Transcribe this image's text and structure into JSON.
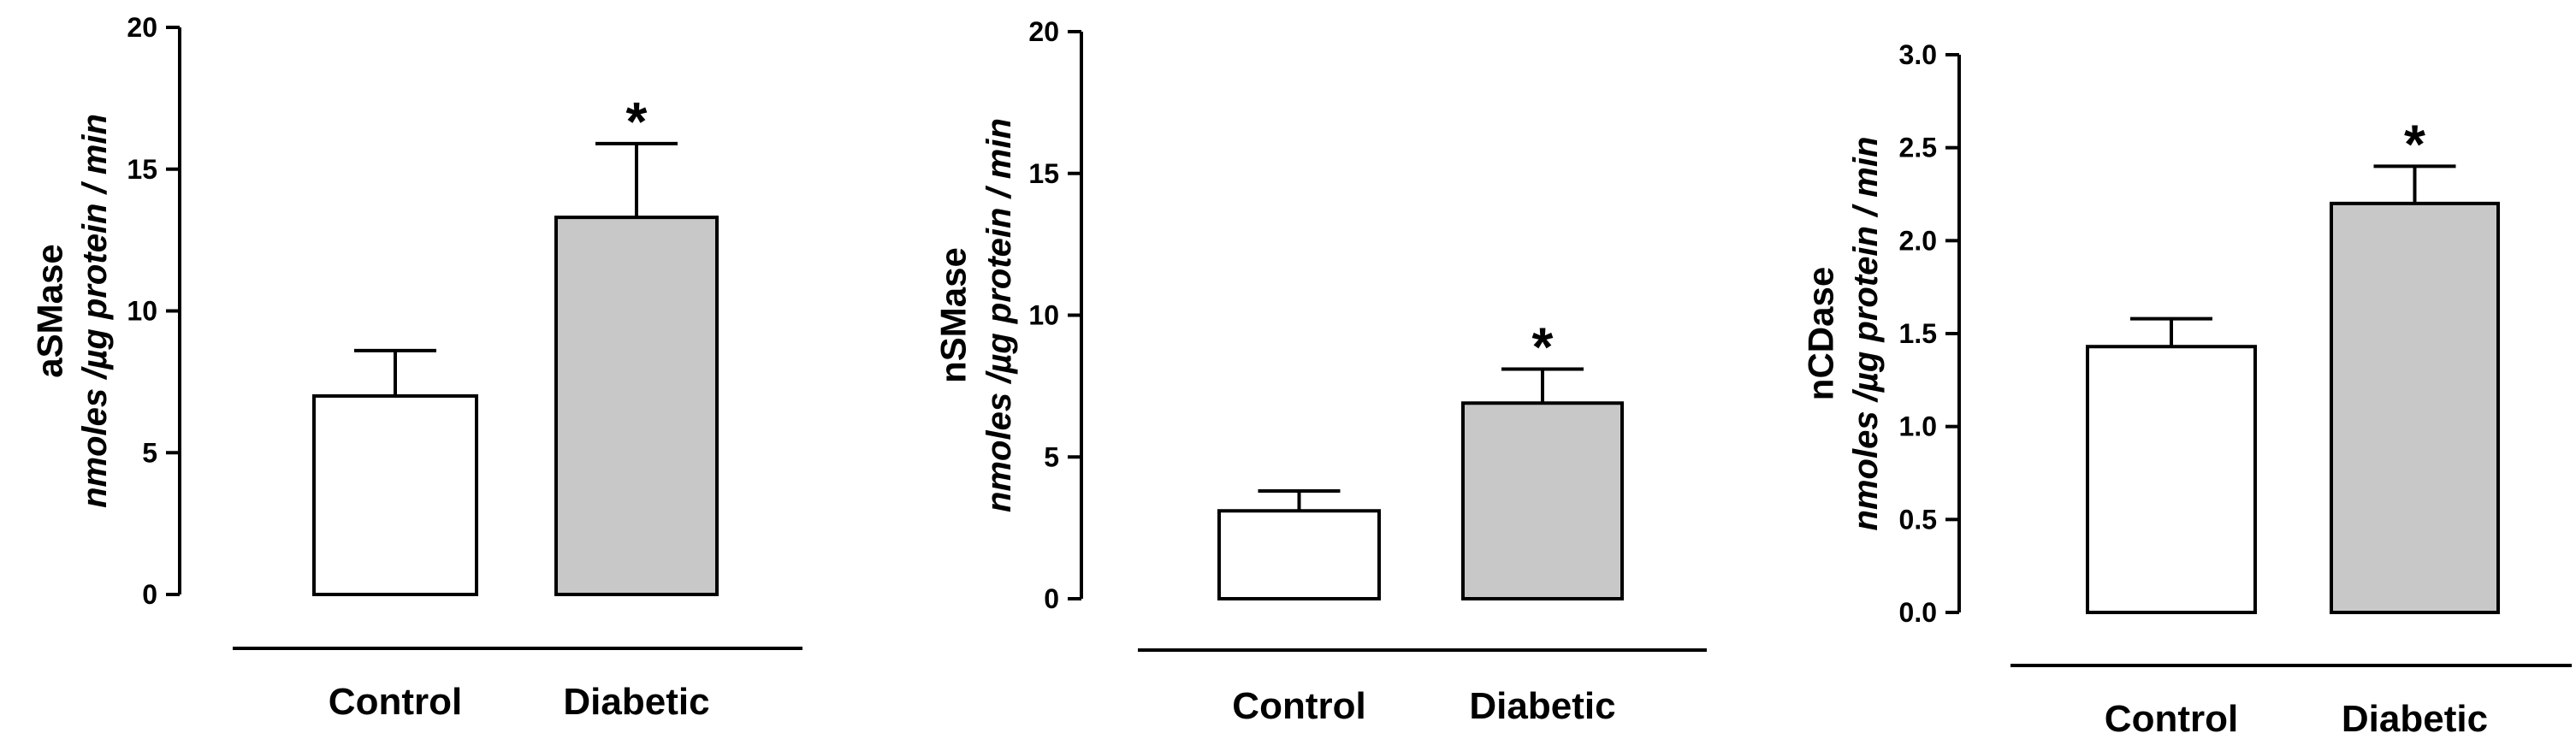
{
  "chart_data": [
    {
      "type": "bar",
      "ylabel": "aSMase",
      "yunit": "nmoles /µg protein / min",
      "categories": [
        "Control",
        "Diabetic"
      ],
      "values": [
        7.0,
        13.3
      ],
      "errors": [
        1.6,
        2.6
      ],
      "significance": [
        "",
        "*"
      ],
      "bar_colors": [
        "#ffffff",
        "#c8c8c8"
      ],
      "ylim": [
        0,
        20
      ],
      "yticks": [
        0,
        5,
        10,
        15,
        20
      ],
      "ytick_labels": [
        "0",
        "5",
        "10",
        "15",
        "20"
      ]
    },
    {
      "type": "bar",
      "ylabel": "nSMase",
      "yunit": "nmoles /µg protein / min",
      "categories": [
        "Control",
        "Diabetic"
      ],
      "values": [
        3.1,
        6.9
      ],
      "errors": [
        0.7,
        1.2
      ],
      "significance": [
        "",
        "*"
      ],
      "bar_colors": [
        "#ffffff",
        "#c8c8c8"
      ],
      "ylim": [
        0,
        20
      ],
      "yticks": [
        0,
        5,
        10,
        15,
        20
      ],
      "ytick_labels": [
        "0",
        "5",
        "10",
        "15",
        "20"
      ]
    },
    {
      "type": "bar",
      "ylabel": "nCDase",
      "yunit": "nmoles /µg protein / min",
      "categories": [
        "Control",
        "Diabetic"
      ],
      "values": [
        1.43,
        2.2
      ],
      "errors": [
        0.15,
        0.2
      ],
      "significance": [
        "",
        "*"
      ],
      "bar_colors": [
        "#ffffff",
        "#c8c8c8"
      ],
      "ylim": [
        0,
        3
      ],
      "yticks": [
        0,
        0.5,
        1,
        1.5,
        2,
        2.5,
        3
      ],
      "ytick_labels": [
        "0.0",
        "0.5",
        "1.0",
        "1.5",
        "2.0",
        "2.5",
        "3.0"
      ]
    }
  ]
}
